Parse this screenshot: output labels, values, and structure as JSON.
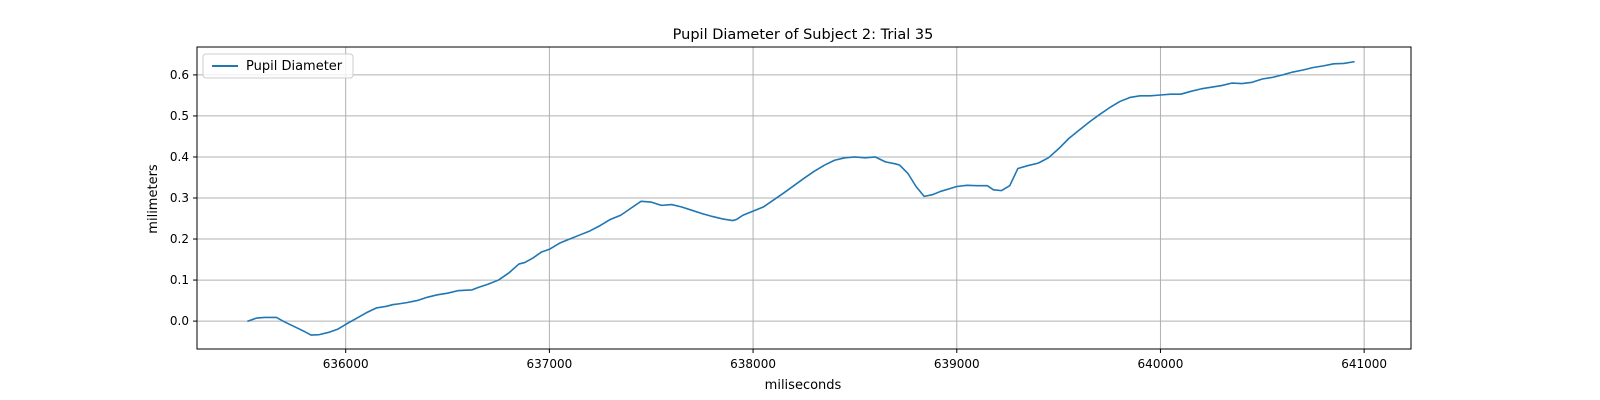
{
  "chart_data": {
    "type": "line",
    "title": "Pupil Diameter of Subject 2: Trial 35",
    "xlabel": "miliseconds",
    "ylabel": "milimeters",
    "xlim": [
      635270,
      641230
    ],
    "ylim": [
      -0.068,
      0.668
    ],
    "x_ticks": [
      636000,
      637000,
      638000,
      639000,
      640000,
      641000
    ],
    "y_ticks": [
      0.0,
      0.1,
      0.2,
      0.3,
      0.4,
      0.5,
      0.6
    ],
    "x_tick_labels": [
      "636000",
      "637000",
      "638000",
      "639000",
      "640000",
      "641000"
    ],
    "y_tick_labels": [
      "0.0",
      "0.1",
      "0.2",
      "0.3",
      "0.4",
      "0.5",
      "0.6"
    ],
    "grid": true,
    "legend_position": "top-left",
    "colors": {
      "line": "#1f77b4",
      "grid": "#b0b0b0",
      "axes": "#000000"
    },
    "series": [
      {
        "name": "Pupil Diameter",
        "x": [
          635520,
          635560,
          635600,
          635660,
          635700,
          635750,
          635800,
          635830,
          635870,
          635920,
          635960,
          636000,
          636050,
          636100,
          636150,
          636200,
          636230,
          636260,
          636300,
          636350,
          636400,
          636450,
          636500,
          636550,
          636580,
          636620,
          636650,
          636700,
          636750,
          636800,
          636850,
          636880,
          636920,
          636960,
          637000,
          637050,
          637100,
          637150,
          637200,
          637250,
          637300,
          637350,
          637400,
          637450,
          637500,
          637550,
          637600,
          637650,
          637700,
          637750,
          637800,
          637850,
          637900,
          637920,
          637950,
          638000,
          638050,
          638100,
          638150,
          638200,
          638250,
          638300,
          638350,
          638400,
          638450,
          638500,
          638550,
          638600,
          638650,
          638700,
          638720,
          638760,
          638800,
          638840,
          638880,
          638920,
          638960,
          639000,
          639050,
          639100,
          639150,
          639180,
          639220,
          639260,
          639300,
          639350,
          639400,
          639450,
          639500,
          639550,
          639600,
          639650,
          639700,
          639750,
          639800,
          639850,
          639900,
          639950,
          640000,
          640050,
          640100,
          640150,
          640200,
          640250,
          640300,
          640350,
          640400,
          640450,
          640500,
          640550,
          640600,
          640650,
          640700,
          640750,
          640800,
          640850,
          640900,
          640950
        ],
        "y": [
          0.0,
          0.007,
          0.009,
          0.009,
          -0.002,
          -0.014,
          -0.026,
          -0.034,
          -0.033,
          -0.027,
          -0.02,
          -0.008,
          0.006,
          0.02,
          0.032,
          0.036,
          0.04,
          0.042,
          0.045,
          0.05,
          0.058,
          0.064,
          0.068,
          0.074,
          0.075,
          0.076,
          0.082,
          0.09,
          0.1,
          0.117,
          0.139,
          0.143,
          0.154,
          0.168,
          0.175,
          0.19,
          0.2,
          0.21,
          0.22,
          0.233,
          0.248,
          0.258,
          0.275,
          0.292,
          0.29,
          0.282,
          0.284,
          0.278,
          0.27,
          0.262,
          0.255,
          0.249,
          0.245,
          0.248,
          0.258,
          0.268,
          0.278,
          0.295,
          0.312,
          0.33,
          0.348,
          0.365,
          0.38,
          0.392,
          0.398,
          0.4,
          0.398,
          0.4,
          0.388,
          0.383,
          0.38,
          0.36,
          0.328,
          0.304,
          0.308,
          0.316,
          0.322,
          0.328,
          0.331,
          0.33,
          0.33,
          0.32,
          0.318,
          0.33,
          0.372,
          0.379,
          0.385,
          0.398,
          0.42,
          0.445,
          0.465,
          0.485,
          0.503,
          0.52,
          0.535,
          0.545,
          0.549,
          0.549,
          0.551,
          0.553,
          0.553,
          0.56,
          0.566,
          0.57,
          0.574,
          0.58,
          0.579,
          0.582,
          0.59,
          0.594,
          0.6,
          0.607,
          0.612,
          0.618,
          0.622,
          0.627,
          0.628,
          0.632
        ]
      }
    ]
  }
}
